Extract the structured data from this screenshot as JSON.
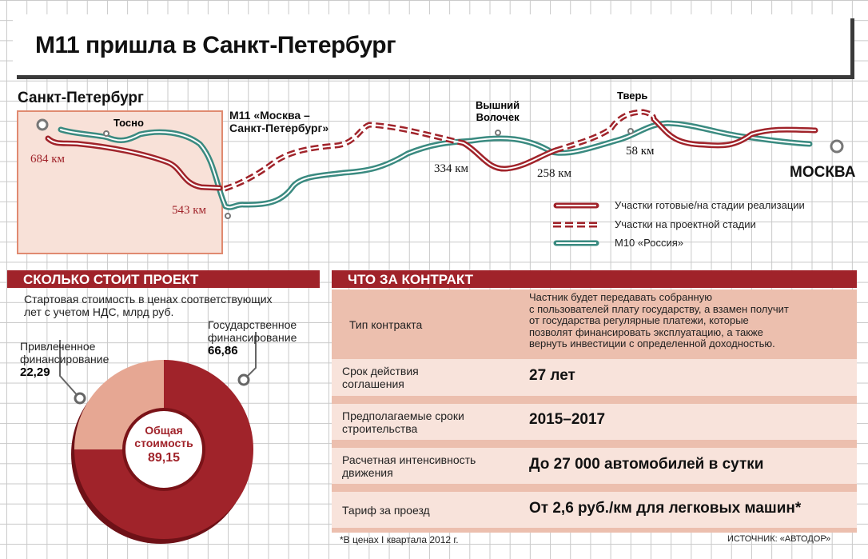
{
  "title": "М11 пришла в Санкт-Петербург",
  "map": {
    "city_start": "Санкт-Петербург",
    "city_end": "МОСКВА",
    "route_label": "М11 «Москва –\nСанкт-Петербург»",
    "towns": [
      "Тосно",
      "Вышний\nВолочек",
      "Тверь"
    ],
    "km_marks": [
      "684 км",
      "543 км",
      "334 км",
      "258 км",
      "58 км"
    ],
    "legend": [
      {
        "label": "Участки готовые/на стадии реализации",
        "style": "solid",
        "color": "#a0232a"
      },
      {
        "label": "Участки на проектной стадии",
        "style": "dashed",
        "color": "#a0232a"
      },
      {
        "label": "М10 «Россия»",
        "style": "solid",
        "color": "#3a8a80"
      }
    ]
  },
  "cost": {
    "header": "СКОЛЬКО СТОИТ ПРОЕКТ",
    "subtitle": "Стартовая стоимость в ценах соответствующих\nлет с учетом НДС, млрд руб.",
    "center_label": "Общая\nстоимость",
    "center_value": "89,15"
  },
  "chart_data": {
    "type": "pie",
    "subtitle": "Стартовая стоимость в ценах соответствующих лет с учетом НДС, млрд руб.",
    "categories": [
      "Государственное финансирование",
      "Привлеченное финансирование"
    ],
    "labels": [
      "Государственное\nфинансирование",
      "Привлеченное\nфинансирование"
    ],
    "values": [
      66.86,
      22.29
    ],
    "value_labels": [
      "66,86",
      "22,29"
    ],
    "total": 89.15,
    "colors": [
      "#a0232a",
      "#e6a793"
    ]
  },
  "contract": {
    "header": "ЧТО ЗА КОНТРАКТ",
    "rows": [
      {
        "label": "Тип контракта",
        "value": "Частник будет передавать собранную\nс пользователей плату государству, а взамен получит\nот государства регулярные платежи, которые\nпозволят финансировать эксплуатацию, а также\nвернуть инвестиции с определенной доходностью."
      },
      {
        "label": "Срок действия\nсоглашения",
        "value": "27 лет"
      },
      {
        "label": "Предполагаемые сроки\nстроительства",
        "value": "2015–2017"
      },
      {
        "label": "Расчетная интенсивность\nдвижения",
        "value": "До 27 000 автомобилей в сутки"
      },
      {
        "label": "Тариф за проезд",
        "value": "От 2,6 руб./км для легковых машин*"
      }
    ],
    "footnote": "*В ценах I квартала 2012 г.",
    "source": "ИСТОЧНИК: «АВТОДОР»"
  }
}
